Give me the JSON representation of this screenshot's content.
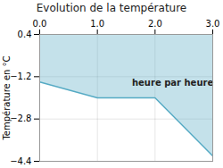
{
  "chart_data": {
    "type": "area",
    "title": "Evolution de la température",
    "ylabel": "Température en °C",
    "x": [
      0,
      1,
      2,
      3
    ],
    "values": [
      -1.4,
      -2.0,
      -2.0,
      -4.2
    ],
    "color": "#55aac4",
    "xlim": [
      0,
      3
    ],
    "xticks": [
      0,
      1,
      2,
      3
    ],
    "ylim": [
      -4.4,
      0.4
    ],
    "yticks": [
      0.4,
      -1.2,
      -2.8,
      -4.4
    ],
    "grid": true,
    "annotations": [
      {
        "text": "heure par heure",
        "x": 1.6,
        "y": -1.3
      }
    ]
  }
}
